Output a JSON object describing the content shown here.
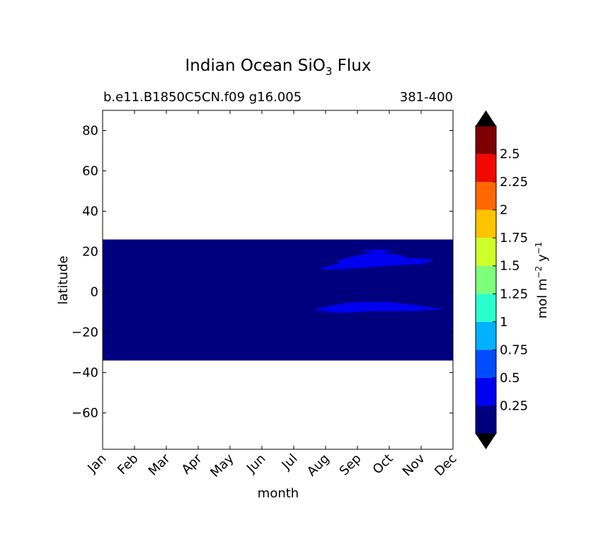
{
  "chart_data": {
    "type": "heatmap",
    "title": {
      "main": "Indian Ocean SiO",
      "sub": "3",
      "end": " Flux"
    },
    "subtitle_left": "b.e11.B1850C5CN.f09 g16.005",
    "subtitle_right": "381-400",
    "xlabel": "month",
    "ylabel": "latitude",
    "categories": [
      "Jan",
      "Feb",
      "Mar",
      "Apr",
      "May",
      "Jun",
      "Jul",
      "Aug",
      "Sep",
      "Oct",
      "Nov",
      "Dec"
    ],
    "xlim": [
      1,
      12
    ],
    "ylim": [
      -78,
      90
    ],
    "yticks": [
      80,
      60,
      40,
      20,
      0,
      -20,
      -40,
      -60
    ],
    "data_region": {
      "lat_min": -34,
      "lat_max": 26,
      "month_min": 1,
      "month_max": 12
    },
    "colorbar": {
      "label": {
        "pre": "mol m",
        "exp1": "−2",
        "mid": " y",
        "exp2": "−1"
      },
      "levels": [
        0,
        0.25,
        0.5,
        0.75,
        1,
        1.25,
        1.5,
        1.75,
        2,
        2.25,
        2.5,
        2.75
      ],
      "tick_labels": [
        "0.25",
        "0.5",
        "0.75",
        "1",
        "1.25",
        "1.5",
        "1.75",
        "2",
        "2.25",
        "2.5"
      ],
      "colors": [
        "#00007f",
        "#0000f1",
        "#004dff",
        "#00b1ff",
        "#29ffce",
        "#7dff7a",
        "#ceff29",
        "#ffc400",
        "#ff6800",
        "#f10800",
        "#7f0000"
      ],
      "under_color": "#000000",
      "over_color": "#000000"
    },
    "contours": [
      {
        "name": "northern-patch",
        "level": "0.25-0.5",
        "color": "#0000f1",
        "points": [
          [
            7.9,
            12
          ],
          [
            8.4,
            14
          ],
          [
            8.4,
            15.5
          ],
          [
            8.7,
            17
          ],
          [
            9.1,
            18.5
          ],
          [
            9.5,
            19.5
          ],
          [
            9.1,
            20.5
          ],
          [
            9.7,
            21
          ],
          [
            10.1,
            20.5
          ],
          [
            9.8,
            19.5
          ],
          [
            10.4,
            18
          ],
          [
            10.5,
            17
          ],
          [
            11.4,
            16
          ],
          [
            11.1,
            14
          ],
          [
            10.0,
            13
          ],
          [
            8.8,
            11.5
          ],
          [
            7.9,
            11
          ]
        ]
      },
      {
        "name": "southern-patch",
        "level": "0.25-0.5",
        "color": "#0000f1",
        "points": [
          [
            7.7,
            -8.5
          ],
          [
            8.1,
            -7
          ],
          [
            8.6,
            -5.5
          ],
          [
            9.1,
            -5
          ],
          [
            10.0,
            -5
          ],
          [
            10.8,
            -6.5
          ],
          [
            11.7,
            -8.5
          ],
          [
            10.8,
            -9.5
          ],
          [
            9.5,
            -9.5
          ],
          [
            8.4,
            -10.5
          ],
          [
            7.7,
            -9
          ]
        ]
      }
    ]
  }
}
